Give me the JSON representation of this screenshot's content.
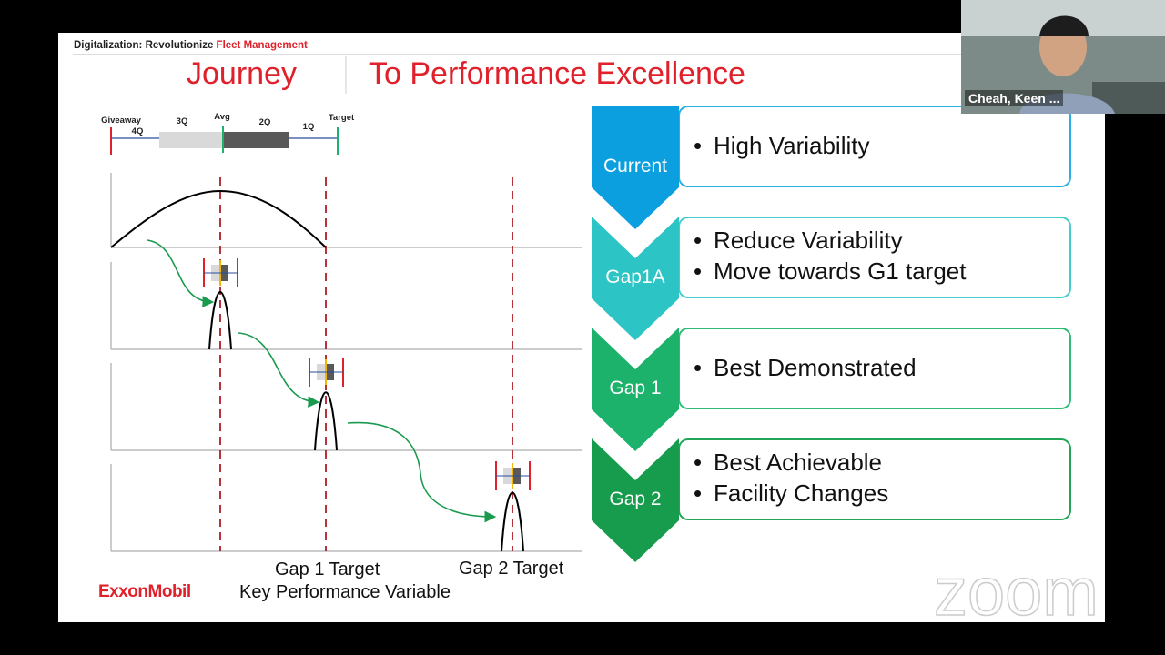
{
  "header": {
    "prefix": "Digitalization: Revolutionize",
    "highlight": "Fleet Management"
  },
  "title": {
    "left": "Journey",
    "right": "To Performance Excellence"
  },
  "scale": {
    "labels": [
      "Giveaway",
      "4Q",
      "3Q",
      "Avg",
      "2Q",
      "1Q",
      "Target"
    ]
  },
  "axis": {
    "gap1_target": "Gap 1 Target",
    "gap2_target": "Gap 2 Target",
    "label": "Key Performance Variable"
  },
  "logo": "ExxonMobil",
  "stages": [
    {
      "name": "Current",
      "bullets": [
        "High Variability"
      ]
    },
    {
      "name": "Gap1A",
      "bullets": [
        "Reduce Variability",
        "Move towards G1 target"
      ]
    },
    {
      "name": "Gap 1",
      "bullets": [
        "Best Demonstrated"
      ]
    },
    {
      "name": "Gap 2",
      "bullets": [
        "Best Achievable",
        "Facility Changes"
      ]
    }
  ],
  "video": {
    "participant": "Cheah, Keen ..."
  },
  "watermark": "zoom"
}
